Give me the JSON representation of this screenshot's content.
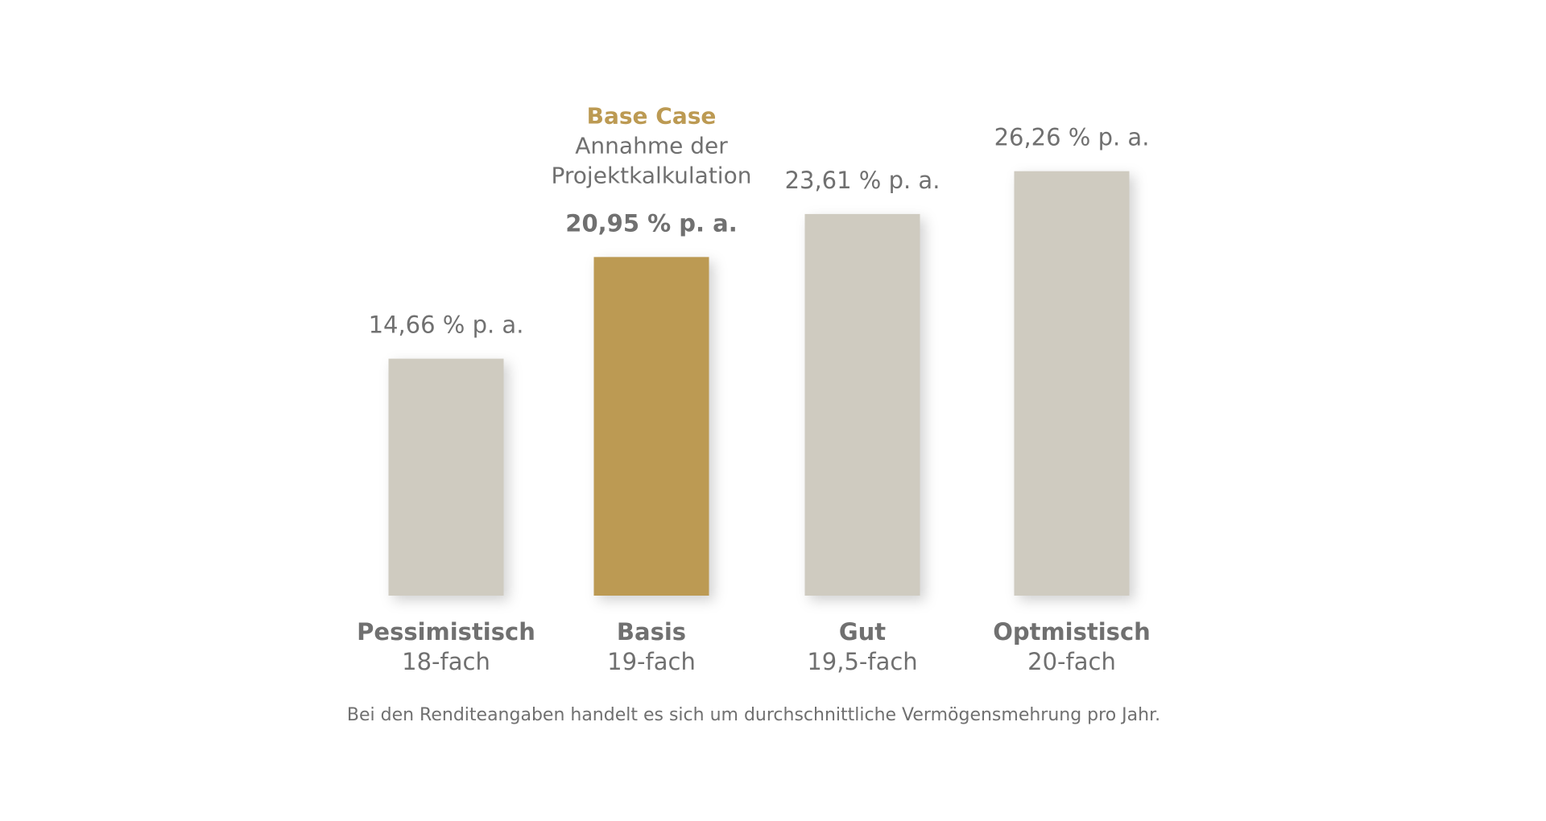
{
  "chart_data": {
    "type": "bar",
    "categories": [
      "Pessimistisch",
      "Basis",
      "Gut",
      "Optmistisch"
    ],
    "sublabels": [
      "18-fach",
      "19-fach",
      "19,5-fach",
      "20-fach"
    ],
    "values": [
      14.66,
      20.95,
      23.61,
      26.26
    ],
    "value_labels": [
      "14,66 % p. a.",
      "20,95 % p. a.",
      "23,61 % p. a.",
      "26,26 % p. a."
    ],
    "colors": [
      "#cfcbc0",
      "#bc9a53",
      "#cfcbc0",
      "#cfcbc0"
    ],
    "annotations": [
      null,
      {
        "title": "Base Case",
        "lines": [
          "Annahme der",
          "Projektkalkulation"
        ]
      },
      null,
      null
    ],
    "footnote": "Bei den Renditeangaben handelt es sich um durchschnittliche Vermögensmehrung pro Jahr."
  }
}
